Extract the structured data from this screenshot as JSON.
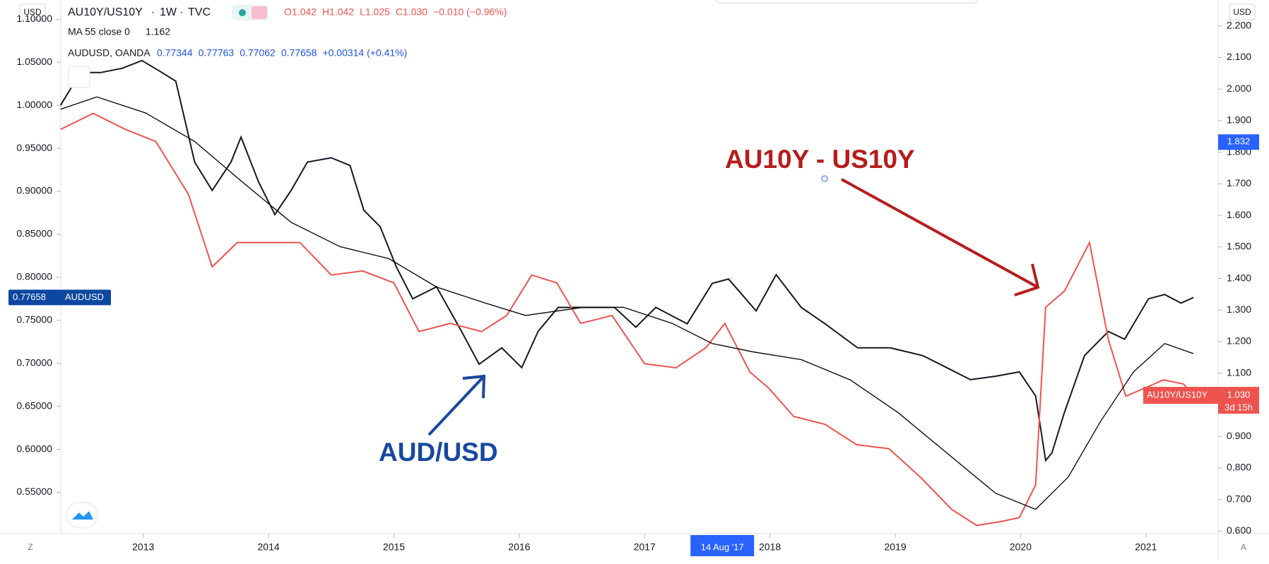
{
  "header": {
    "currency_left": "USD",
    "currency_right": "USD",
    "main_symbol": "AU10Y/US10Y",
    "interval": "1W",
    "exchange": "TVC",
    "ohlc": [
      "O1.042",
      "H1.042",
      "L1.025",
      "C1.030",
      "−0.010 (−0.96%)"
    ],
    "overlay": "AUDUSD, OANDA",
    "overlay_values": [
      "0.77344",
      "0.77763",
      "0.77062",
      "0.77658",
      "+0.00314 (+0.41%)"
    ]
  },
  "footer": {
    "left": "Z",
    "right": "A"
  },
  "chart_data": {
    "type": "line",
    "annotations": [
      "AU10Y - US10Y",
      "AUD/USD"
    ],
    "xlim": [
      2012.342,
      2021.576
    ],
    "xticks": [
      2013,
      2014,
      2015,
      2016,
      2017,
      2018,
      2019,
      2020,
      2021
    ],
    "ylim": [
      0.502,
      1.1224
    ],
    "yticks": [
      {
        "value": 0.55,
        "label": "0.55000"
      },
      {
        "value": 0.6,
        "label": "0.60000"
      },
      {
        "value": 0.65,
        "label": "0.65000"
      },
      {
        "value": 0.7,
        "label": "0.70000"
      },
      {
        "value": 0.75,
        "label": "0.75000"
      },
      {
        "value": 0.8,
        "label": "0.80000"
      },
      {
        "value": 0.85,
        "label": "0.85000"
      },
      {
        "value": 0.9,
        "label": "0.90000"
      },
      {
        "value": 0.95,
        "label": "0.95000"
      },
      {
        "value": 1.0,
        "label": "1.00000"
      },
      {
        "value": 1.05,
        "label": "1.05000"
      },
      {
        "value": 1.1,
        "label": "1.10000"
      }
    ],
    "y2lim": [
      0.592,
      2.282
    ],
    "y2ticks": [
      {
        "value": 0.6,
        "label": "0.600"
      },
      {
        "value": 0.7,
        "label": "0.700"
      },
      {
        "value": 0.8,
        "label": "0.800"
      },
      {
        "value": 0.9,
        "label": "0.900"
      },
      {
        "value": 1.0,
        "label": "1.000"
      },
      {
        "value": 1.1,
        "label": "1.100"
      },
      {
        "value": 1.2,
        "label": "1.200"
      },
      {
        "value": 1.3,
        "label": "1.300"
      },
      {
        "value": 1.4,
        "label": "1.400"
      },
      {
        "value": 1.5,
        "label": "1.500"
      },
      {
        "value": 1.6,
        "label": "1.600"
      },
      {
        "value": 1.7,
        "label": "1.700"
      },
      {
        "value": 1.8,
        "label": "1.800"
      },
      {
        "value": 1.9,
        "label": "1.900"
      },
      {
        "value": 2.0,
        "label": "2.000"
      },
      {
        "value": 2.1,
        "label": "2.100"
      },
      {
        "value": 2.2,
        "label": "2.200"
      }
    ],
    "crosshair": {
      "x": 2017.62,
      "x_label": "14 Aug '17",
      "y2": 1.832,
      "y2_label": "1.832"
    },
    "series": [
      {
        "name": "AUDUSD",
        "color": "#131722",
        "axis": "y",
        "x": [
          2012.34,
          2012.5,
          2012.66,
          2012.83,
          2012.99,
          2013.15,
          2013.26,
          2013.41,
          2013.55,
          2013.7,
          2013.78,
          2013.92,
          2014.05,
          2014.18,
          2014.31,
          2014.5,
          2014.65,
          2014.76,
          2014.89,
          2015.02,
          2015.15,
          2015.34,
          2015.54,
          2015.68,
          2015.86,
          2016.02,
          2016.15,
          2016.31,
          2016.51,
          2016.76,
          2016.93,
          2017.09,
          2017.34,
          2017.54,
          2017.67,
          2017.89,
          2018.05,
          2018.25,
          2018.44,
          2018.7,
          2018.96,
          2019.22,
          2019.41,
          2019.6,
          2019.8,
          2019.99,
          2020.12,
          2020.2,
          2020.25,
          2020.35,
          2020.51,
          2020.7,
          2020.83,
          2021.02,
          2021.15,
          2021.28,
          2021.38
        ],
        "values": [
          1.0,
          1.038,
          1.038,
          1.043,
          1.052,
          1.038,
          1.028,
          0.934,
          0.901,
          0.934,
          0.963,
          0.911,
          0.873,
          0.901,
          0.934,
          0.939,
          0.93,
          0.878,
          0.859,
          0.812,
          0.775,
          0.789,
          0.737,
          0.699,
          0.718,
          0.695,
          0.737,
          0.765,
          0.765,
          0.765,
          0.742,
          0.765,
          0.746,
          0.793,
          0.798,
          0.761,
          0.803,
          0.765,
          0.746,
          0.718,
          0.718,
          0.709,
          0.695,
          0.681,
          0.685,
          0.69,
          0.662,
          0.587,
          0.596,
          0.643,
          0.709,
          0.737,
          0.728,
          0.775,
          0.78,
          0.77,
          0.77658
        ]
      },
      {
        "name": "AU10Y/US10Y",
        "color": "#ef5350",
        "axis": "y2",
        "last_label": "1.030",
        "countdown": "3d 15h",
        "x": [
          2012.34,
          2012.6,
          2012.86,
          2013.1,
          2013.36,
          2013.55,
          2013.75,
          2014.0,
          2014.25,
          2014.5,
          2014.75,
          2015.0,
          2015.2,
          2015.45,
          2015.7,
          2015.9,
          2016.1,
          2016.3,
          2016.49,
          2016.74,
          2017.0,
          2017.25,
          2017.49,
          2017.64,
          2017.84,
          2017.99,
          2018.19,
          2018.44,
          2018.69,
          2018.95,
          2019.2,
          2019.45,
          2019.65,
          2019.85,
          2019.99,
          2020.12,
          2020.2,
          2020.35,
          2020.55,
          2020.7,
          2020.84,
          2020.99,
          2021.14,
          2021.3,
          2021.38
        ],
        "values": [
          1.872,
          1.923,
          1.872,
          1.834,
          1.667,
          1.437,
          1.514,
          1.514,
          1.514,
          1.411,
          1.424,
          1.386,
          1.232,
          1.258,
          1.232,
          1.283,
          1.411,
          1.386,
          1.258,
          1.283,
          1.13,
          1.117,
          1.181,
          1.258,
          1.104,
          1.053,
          0.963,
          0.938,
          0.874,
          0.861,
          0.771,
          0.669,
          0.618,
          0.631,
          0.643,
          0.746,
          1.309,
          1.36,
          1.514,
          1.207,
          1.027,
          1.053,
          1.079,
          1.066,
          1.03
        ]
      },
      {
        "name": "MA 55 close 0",
        "color": "#000000",
        "axis": "y2",
        "x": [
          2012.34,
          2012.63,
          2013.02,
          2013.41,
          2013.79,
          2014.18,
          2014.57,
          2014.96,
          2015.34,
          2015.73,
          2016.05,
          2016.51,
          2016.83,
          2017.22,
          2017.54,
          2017.86,
          2018.25,
          2018.64,
          2019.02,
          2019.41,
          2019.8,
          2020.12,
          2020.38,
          2020.64,
          2020.9,
          2021.15,
          2021.38
        ],
        "values": [
          1.936,
          1.975,
          1.924,
          1.834,
          1.706,
          1.578,
          1.501,
          1.463,
          1.373,
          1.322,
          1.283,
          1.309,
          1.309,
          1.258,
          1.194,
          1.168,
          1.143,
          1.079,
          0.976,
          0.848,
          0.72,
          0.669,
          0.771,
          0.949,
          1.104,
          1.194,
          1.162
        ]
      }
    ]
  }
}
